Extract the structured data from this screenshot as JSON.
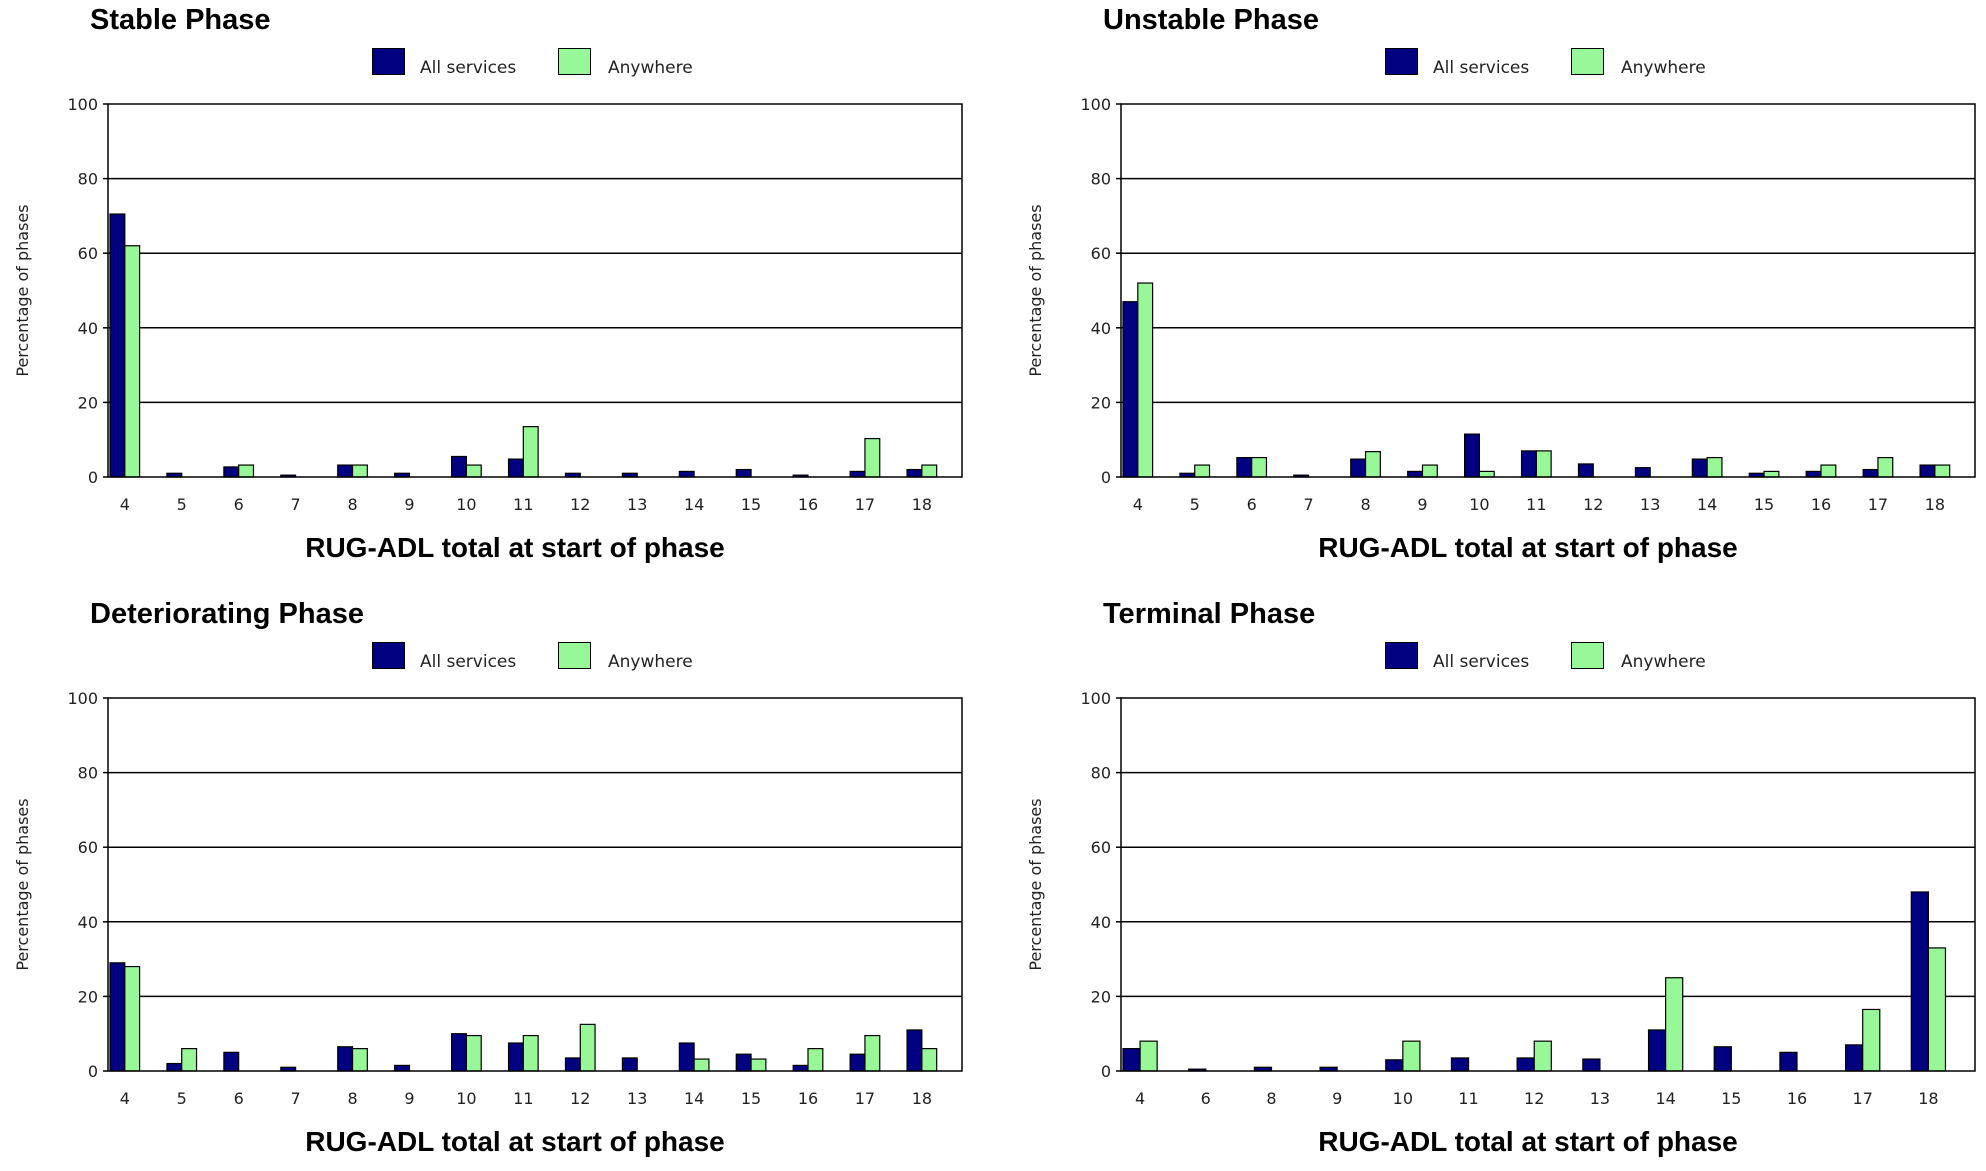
{
  "colors": {
    "all_services": "#000080",
    "anywhere": "#98F898"
  },
  "chart_data": [
    {
      "type": "bar",
      "title": "Stable Phase",
      "xlabel": "RUG-ADL total at start of phase",
      "ylabel": "Percentage of phases",
      "ylim": [
        0,
        100
      ],
      "yticks": [
        0,
        20,
        40,
        60,
        80,
        100
      ],
      "grid": true,
      "legend": "top-center",
      "categories": [
        "4",
        "5",
        "6",
        "7",
        "8",
        "9",
        "10",
        "11",
        "12",
        "13",
        "14",
        "15",
        "16",
        "17",
        "18"
      ],
      "series": [
        {
          "name": "All services",
          "values": [
            70.5,
            1,
            2.7,
            0.5,
            3.2,
            1,
            5.5,
            4.8,
            1,
            1,
            1.5,
            2,
            0.5,
            1.5,
            2
          ]
        },
        {
          "name": "Anywhere",
          "values": [
            62,
            0,
            3.2,
            0,
            3.2,
            0,
            3.2,
            13.5,
            0,
            0,
            0,
            0,
            0,
            10.3,
            3.2
          ]
        }
      ]
    },
    {
      "type": "bar",
      "title": "Unstable Phase",
      "xlabel": "RUG-ADL total at start of phase",
      "ylabel": "Percentage of phases",
      "ylim": [
        0,
        100
      ],
      "yticks": [
        0,
        20,
        40,
        60,
        80,
        100
      ],
      "grid": true,
      "legend": "top-center",
      "categories": [
        "4",
        "5",
        "6",
        "7",
        "8",
        "9",
        "10",
        "11",
        "12",
        "13",
        "14",
        "15",
        "16",
        "17",
        "18"
      ],
      "series": [
        {
          "name": "All services",
          "values": [
            47,
            1,
            5.2,
            0.5,
            4.8,
            1.5,
            11.5,
            7,
            3.5,
            2.5,
            4.8,
            1,
            1.5,
            2,
            3.2
          ]
        },
        {
          "name": "Anywhere",
          "values": [
            52,
            3.2,
            5.2,
            0,
            6.8,
            3.2,
            1.5,
            7,
            0,
            0,
            5.2,
            1.5,
            3.2,
            5.2,
            3.2
          ]
        }
      ]
    },
    {
      "type": "bar",
      "title": "Deteriorating Phase",
      "xlabel": "RUG-ADL total at start of phase",
      "ylabel": "Percentage of phases",
      "ylim": [
        0,
        100
      ],
      "yticks": [
        0,
        20,
        40,
        60,
        80,
        100
      ],
      "grid": true,
      "legend": "top-center",
      "categories": [
        "4",
        "5",
        "6",
        "7",
        "8",
        "9",
        "10",
        "11",
        "12",
        "13",
        "14",
        "15",
        "16",
        "17",
        "18"
      ],
      "series": [
        {
          "name": "All services",
          "values": [
            29,
            2,
            5,
            1,
            6.5,
            1.5,
            10,
            7.5,
            3.5,
            3.5,
            7.5,
            4.5,
            1.5,
            4.5,
            11
          ]
        },
        {
          "name": "Anywhere",
          "values": [
            28,
            6,
            0,
            0,
            6,
            0,
            9.5,
            9.5,
            12.5,
            0,
            3.2,
            3.2,
            6,
            9.5,
            6
          ]
        }
      ]
    },
    {
      "type": "bar",
      "title": "Terminal Phase",
      "xlabel": "RUG-ADL total at start of phase",
      "ylabel": "Percentage of phases",
      "ylim": [
        0,
        100
      ],
      "yticks": [
        0,
        20,
        40,
        60,
        80,
        100
      ],
      "grid": true,
      "legend": "top-center",
      "categories": [
        "4",
        "6",
        "8",
        "9",
        "10",
        "11",
        "12",
        "13",
        "14",
        "15",
        "16",
        "17",
        "18"
      ],
      "series": [
        {
          "name": "All services",
          "values": [
            6,
            0.5,
            1,
            1,
            3,
            3.5,
            3.5,
            3.2,
            11,
            6.5,
            5,
            7,
            48
          ]
        },
        {
          "name": "Anywhere",
          "values": [
            8,
            0,
            0,
            0,
            8,
            0,
            8,
            0,
            25,
            0,
            0,
            16.5,
            33
          ]
        }
      ]
    }
  ]
}
